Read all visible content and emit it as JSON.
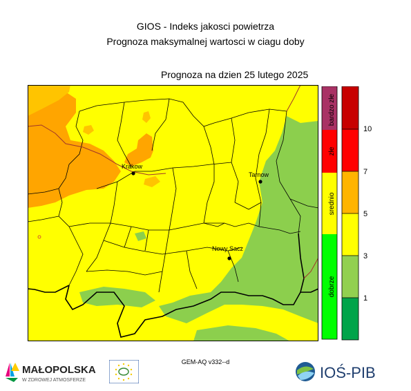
{
  "header": {
    "title": "GIOS - Indeks jakosci powietrza",
    "subtitle": "Prognoza maksymalnej wartosci w ciagu doby",
    "forecast_date": "Prognoza na dzien  25 lutego 2025"
  },
  "cities": [
    {
      "name": "Krakow"
    },
    {
      "name": "Tarnow"
    },
    {
      "name": "Nowy Sacz"
    }
  ],
  "legend": {
    "categories": [
      {
        "label": "bardzo złe",
        "color": "#a93265"
      },
      {
        "label": "złe",
        "color": "#ff0000"
      },
      {
        "label": "srednio",
        "color": "#ffff00"
      },
      {
        "label": "dobrze",
        "color": "#00ff00"
      }
    ],
    "scale_colors": [
      "#c70000",
      "#ff0000",
      "#ffb400",
      "#ffff00",
      "#92d050",
      "#00a44a"
    ],
    "ticks": [
      "10",
      "7",
      "5",
      "3",
      "1"
    ]
  },
  "map_colors": {
    "background": "#ffff00",
    "dark_orange": "#ffa500",
    "orange": "#ffc400",
    "green": "#8ccf4d"
  },
  "footer": {
    "model": "GEM-AQ v332--d",
    "logo_malopolska": "MAŁOPOLSKA",
    "logo_malopolska_sub": "W ZDROWEJ ATMOSFERZE",
    "logo_ios": "IOŚ-PIB"
  }
}
